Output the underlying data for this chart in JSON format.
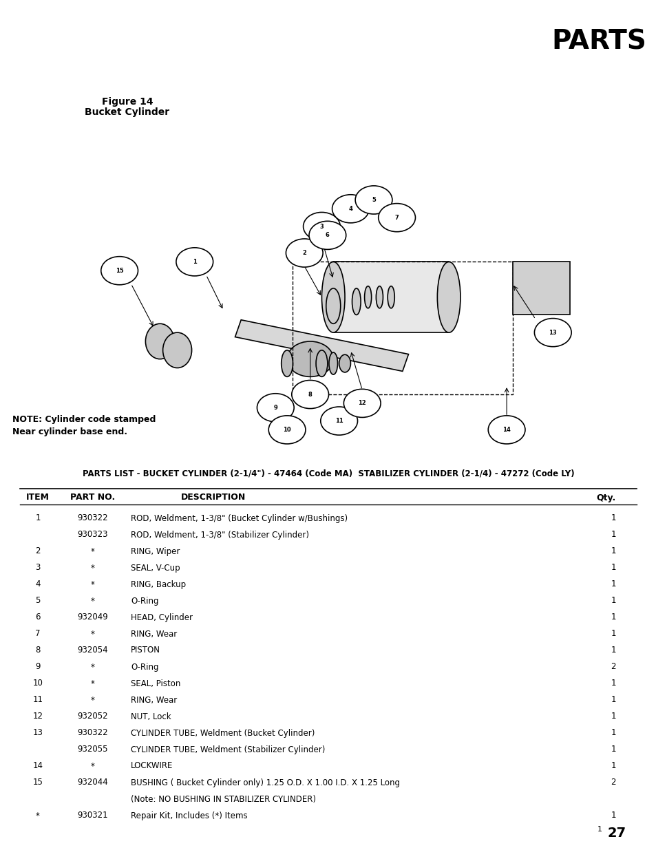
{
  "title": "PARTS",
  "figure_label": "Figure 14",
  "figure_sublabel": "Bucket Cylinder",
  "note_text": "NOTE: Cylinder code stamped\nNear cylinder base end.",
  "parts_list_title": "PARTS LIST - BUCKET CYLINDER (2-1/4\") - 47464 (Code MA)  STABILIZER CYLINDER (2-1/4) - 47272 (Code LY)",
  "table_headers": [
    "ITEM",
    "PART NO.",
    "DESCRIPTION",
    "Qty."
  ],
  "table_rows": [
    [
      "1",
      "930322",
      "ROD, Weldment, 1-3/8\" (Bucket Cylinder w/Bushings)",
      "1"
    ],
    [
      "",
      "930323",
      "ROD, Weldment, 1-3/8\" (Stabilizer Cylinder)",
      "1"
    ],
    [
      "2",
      "*",
      "RING, Wiper",
      "1"
    ],
    [
      "3",
      "*",
      "SEAL, V-Cup",
      "1"
    ],
    [
      "4",
      "*",
      "RING, Backup",
      "1"
    ],
    [
      "5",
      "*",
      "O-Ring",
      "1"
    ],
    [
      "6",
      "932049",
      "HEAD, Cylinder",
      "1"
    ],
    [
      "7",
      "*",
      "RING, Wear",
      "1"
    ],
    [
      "8",
      "932054",
      "PISTON",
      "1"
    ],
    [
      "9",
      "*",
      "O-Ring",
      "2"
    ],
    [
      "10",
      "*",
      "SEAL, Piston",
      "1"
    ],
    [
      "11",
      "*",
      "RING, Wear",
      "1"
    ],
    [
      "12",
      "932052",
      "NUT, Lock",
      "1"
    ],
    [
      "13",
      "930322",
      "CYLINDER TUBE, Weldment (Bucket Cylinder)",
      "1"
    ],
    [
      "",
      "932055",
      "CYLINDER TUBE, Weldment (Stabilizer Cylinder)",
      "1"
    ],
    [
      "14",
      "*",
      "LOCKWIRE",
      "1"
    ],
    [
      "15",
      "932044",
      "BUSHING ( Bucket Cylinder only) 1.25 O.D. X 1.00 I.D. X 1.25 Long",
      "2"
    ],
    [
      "",
      "",
      "(Note: NO BUSHING IN STABILIZER CYLINDER)",
      ""
    ],
    [
      "*",
      "930321",
      "Repair Kit, Includes (*) Items",
      "1"
    ]
  ],
  "page_number": "27",
  "bg_color": "#ffffff",
  "text_color": "#000000"
}
